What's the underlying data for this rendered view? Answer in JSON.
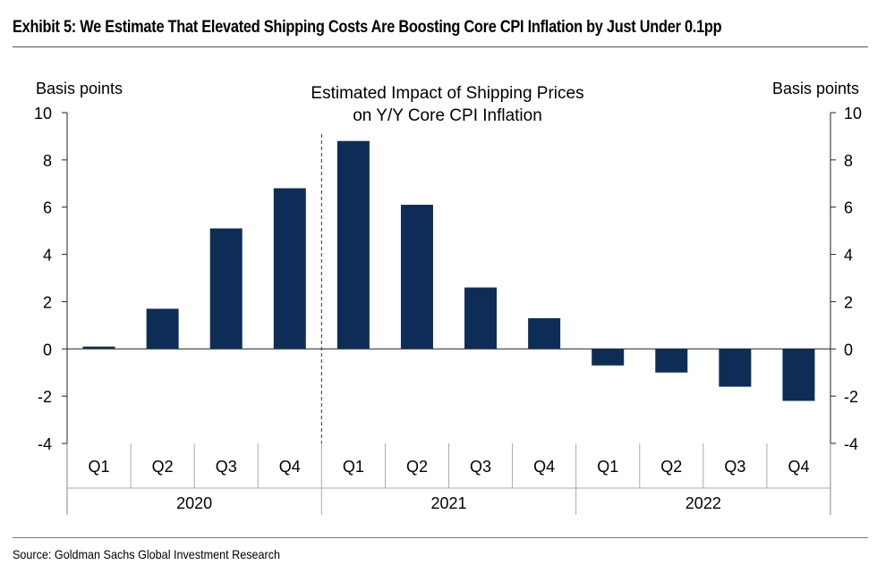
{
  "exhibit": {
    "title": "Exhibit 5: We Estimate That Elevated Shipping Costs Are Boosting Core CPI Inflation by Just Under 0.1pp",
    "source": "Source: Goldman Sachs Global Investment Research"
  },
  "chart_data": {
    "type": "bar",
    "title_line1": "Estimated Impact of Shipping Prices",
    "title_line2": "on Y/Y Core CPI Inflation",
    "ylabel_left": "Basis points",
    "ylabel_right": "Basis points",
    "ylim": [
      -4,
      10
    ],
    "yticks": [
      -4,
      -2,
      0,
      2,
      4,
      6,
      8,
      10
    ],
    "categories": [
      "Q1",
      "Q2",
      "Q3",
      "Q4",
      "Q1",
      "Q2",
      "Q3",
      "Q4",
      "Q1",
      "Q2",
      "Q3",
      "Q4"
    ],
    "years": [
      "2020",
      "2021",
      "2022"
    ],
    "values": [
      0.1,
      1.7,
      5.1,
      6.8,
      8.8,
      6.1,
      2.6,
      1.3,
      -0.7,
      -1.0,
      -1.6,
      -2.2
    ],
    "bar_color": "#0e2d56"
  }
}
